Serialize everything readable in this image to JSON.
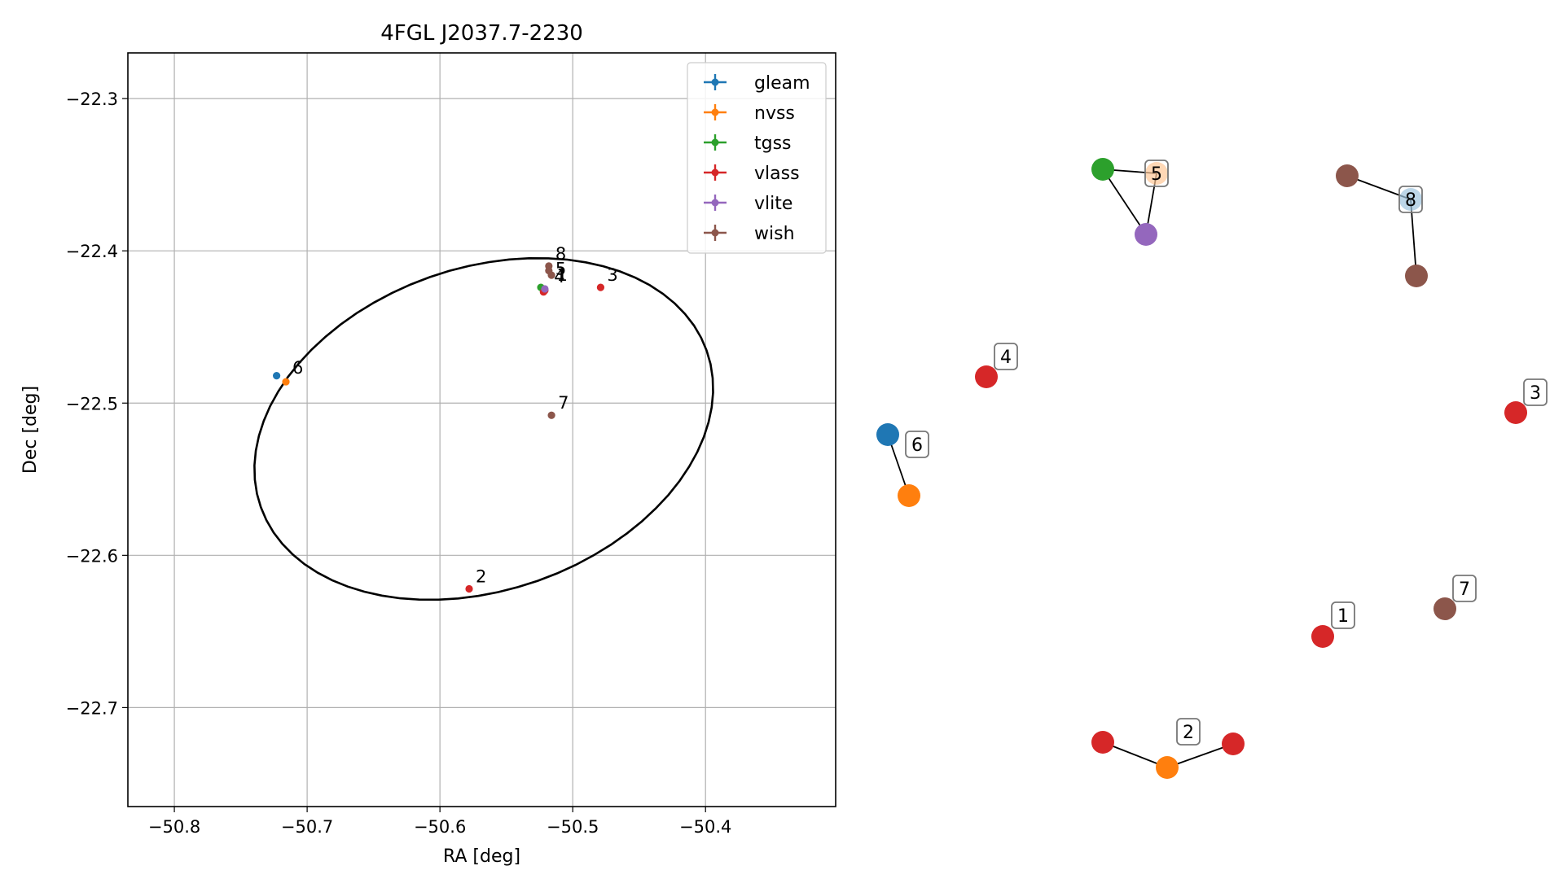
{
  "chart_data": [
    {
      "type": "scatter",
      "title": "4FGL J2037.7-2230",
      "xlabel": "RA [deg]",
      "ylabel": "Dec [deg]",
      "xlim": [
        -50.835,
        -50.302
      ],
      "ylim": [
        -22.765,
        -22.27
      ],
      "xticks": [
        -50.8,
        -50.7,
        -50.6,
        -50.5,
        -50.4
      ],
      "xtick_labels": [
        "−50.8",
        "−50.7",
        "−50.6",
        "−50.5",
        "−50.4"
      ],
      "yticks": [
        -22.3,
        -22.4,
        -22.5,
        -22.6,
        -22.7
      ],
      "ytick_labels": [
        "−22.3",
        "−22.4",
        "−22.5",
        "−22.6",
        "−22.7"
      ],
      "grid": true,
      "legend_position": "top-right",
      "ellipse": {
        "center": [
          -50.567,
          -22.517
        ],
        "semi_major": 0.176,
        "semi_minor": 0.107,
        "angle_deg": 14
      },
      "series": [
        {
          "name": "gleam",
          "color": "#1f77b4",
          "points": [
            [
              -50.723,
              -22.482
            ]
          ]
        },
        {
          "name": "nvss",
          "color": "#ff7f0e",
          "points": [
            [
              -50.716,
              -22.486
            ],
            [
              -50.522,
              -22.425
            ]
          ]
        },
        {
          "name": "tgss",
          "color": "#2ca02c",
          "points": [
            [
              -50.524,
              -22.424
            ]
          ]
        },
        {
          "name": "vlass",
          "color": "#d62728",
          "points": [
            [
              -50.522,
              -22.427
            ],
            [
              -50.578,
              -22.622
            ],
            [
              -50.479,
              -22.424
            ],
            [
              -50.521,
              -22.426
            ]
          ]
        },
        {
          "name": "vlite",
          "color": "#9467bd",
          "points": [
            [
              -50.521,
              -22.425
            ]
          ]
        },
        {
          "name": "wish",
          "color": "#8c564b",
          "points": [
            [
              -50.518,
              -22.41
            ],
            [
              -50.516,
              -22.416
            ],
            [
              -50.518,
              -22.413
            ],
            [
              -50.516,
              -22.508
            ]
          ]
        }
      ],
      "annotations": [
        {
          "text": "8",
          "x": -50.518,
          "y": -22.41
        },
        {
          "text": "5",
          "x": -50.518,
          "y": -22.42
        },
        {
          "text": "4",
          "x": -50.519,
          "y": -22.425
        },
        {
          "text": "1",
          "x": -50.517,
          "y": -22.424
        },
        {
          "text": "3",
          "x": -50.479,
          "y": -22.424
        },
        {
          "text": "6",
          "x": -50.716,
          "y": -22.485
        },
        {
          "text": "7",
          "x": -50.516,
          "y": -22.508
        },
        {
          "text": "2",
          "x": -50.578,
          "y": -22.622
        }
      ]
    },
    {
      "type": "network",
      "nodes": [
        {
          "id": "n1",
          "color": "#2ca02c"
        },
        {
          "id": "n2",
          "color": "#ff7f0e",
          "label": "5",
          "faded": true
        },
        {
          "id": "n3",
          "color": "#9467bd"
        },
        {
          "id": "n4",
          "color": "#8c564b"
        },
        {
          "id": "n5",
          "color": "#1f77b4",
          "label": "8",
          "faded": true
        },
        {
          "id": "n6",
          "color": "#8c564b"
        },
        {
          "id": "n7",
          "color": "#d62728",
          "label": "4"
        },
        {
          "id": "n8",
          "color": "#d62728",
          "label": "3"
        },
        {
          "id": "n9",
          "color": "#1f77b4",
          "label": "6"
        },
        {
          "id": "n10",
          "color": "#ff7f0e"
        },
        {
          "id": "n11",
          "color": "#8c564b",
          "label": "7"
        },
        {
          "id": "n12",
          "color": "#d62728",
          "label": "1"
        },
        {
          "id": "n13",
          "color": "#d62728"
        },
        {
          "id": "n14",
          "color": "#ff7f0e",
          "label": "2"
        },
        {
          "id": "n15",
          "color": "#d62728"
        }
      ],
      "edges": [
        [
          "n1",
          "n2"
        ],
        [
          "n1",
          "n3"
        ],
        [
          "n2",
          "n3"
        ],
        [
          "n4",
          "n5"
        ],
        [
          "n5",
          "n6"
        ],
        [
          "n9",
          "n10"
        ],
        [
          "n13",
          "n14"
        ],
        [
          "n14",
          "n15"
        ]
      ]
    }
  ]
}
